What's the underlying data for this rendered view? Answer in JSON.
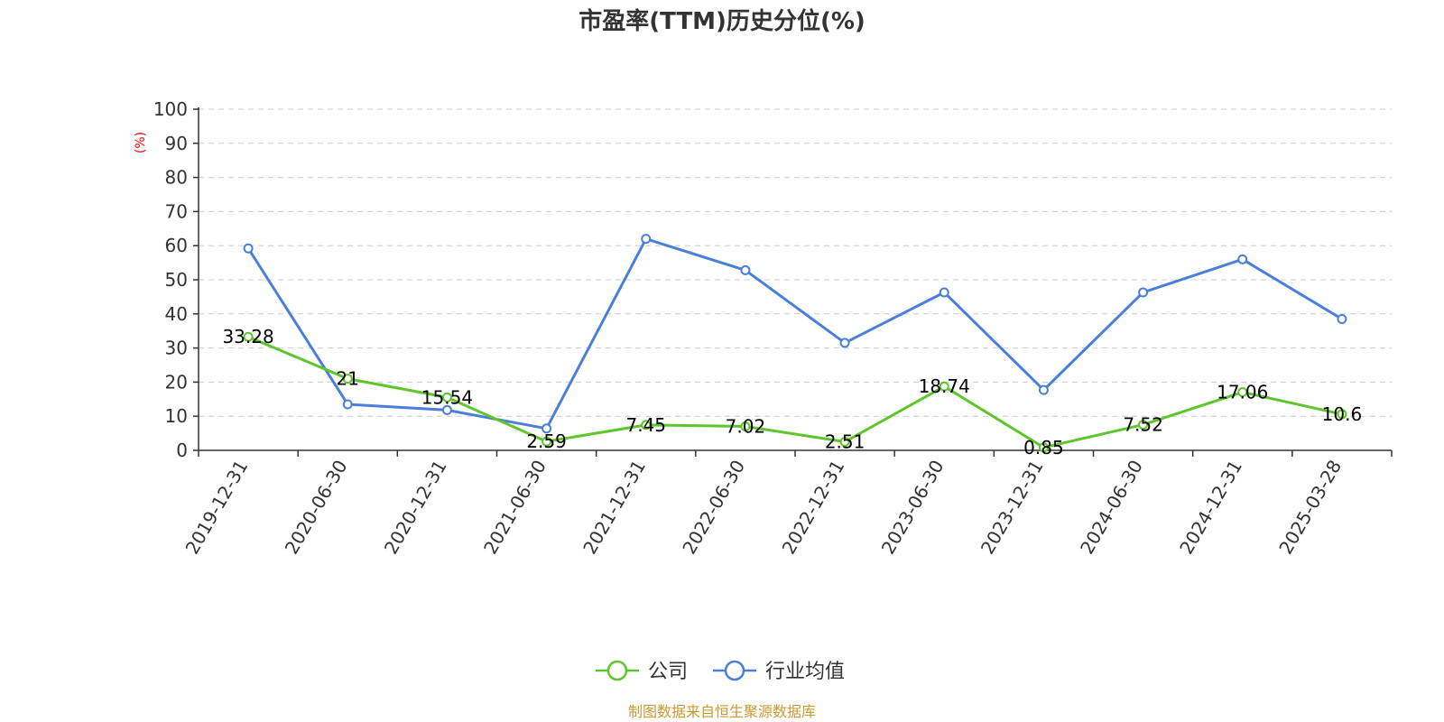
{
  "chart_data": {
    "type": "line",
    "title": "市盈率(TTM)历史分位(%)",
    "ylabel": "(%)",
    "ylim": [
      0,
      100
    ],
    "yticks": [
      0,
      10,
      20,
      30,
      40,
      50,
      60,
      70,
      80,
      90,
      100
    ],
    "grid": true,
    "legend_position": "bottom-center",
    "categories": [
      "2019-12-31",
      "2020-06-30",
      "2020-12-31",
      "2021-06-30",
      "2021-12-31",
      "2022-06-30",
      "2022-12-31",
      "2023-06-30",
      "2023-12-31",
      "2024-06-30",
      "2024-12-31",
      "2025-03-28"
    ],
    "series": [
      {
        "name": "公司",
        "color": "#5ec52c",
        "show_labels": true,
        "labels": [
          "33.28",
          "21",
          "15.54",
          "2.59",
          "7.45",
          "7.02",
          "2.51",
          "18.74",
          "0.85",
          "7.52",
          "17.06",
          "10.6"
        ],
        "values": [
          33.28,
          21,
          15.54,
          2.59,
          7.45,
          7.02,
          2.51,
          18.74,
          0.85,
          7.52,
          17.06,
          10.6
        ]
      },
      {
        "name": "行业均值",
        "color": "#4a7fdc",
        "show_labels": false,
        "values": [
          59.2,
          13.5,
          11.8,
          6.4,
          62.0,
          52.8,
          31.5,
          46.3,
          17.7,
          46.3,
          56.0,
          38.5
        ]
      }
    ],
    "source": "制图数据来自恒生聚源数据库"
  }
}
